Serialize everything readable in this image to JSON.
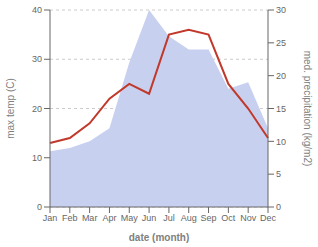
{
  "chart_data": {
    "type": "line",
    "categories": [
      "Jan",
      "Feb",
      "Mar",
      "Apr",
      "May",
      "Jun",
      "Jul",
      "Aug",
      "Sep",
      "Oct",
      "Nov",
      "Dec"
    ],
    "series": [
      {
        "type": "area",
        "axis": "y2",
        "color": "#c8d0f0",
        "values": [
          8.5,
          9,
          10,
          12,
          22,
          30,
          26,
          24,
          24,
          18,
          19,
          12
        ]
      },
      {
        "type": "line",
        "color": "#c0392b",
        "values": [
          13,
          14,
          17,
          22,
          25,
          23,
          35,
          36,
          35,
          25,
          20,
          14
        ]
      }
    ],
    "xlabel": "date (month)",
    "ylabel": "max temp (C)",
    "y2label": "med. precipitation (kg/m2)",
    "ylim": [
      0,
      40
    ],
    "yticks": [
      0,
      10,
      20,
      30,
      40
    ],
    "y2lim": [
      0,
      30
    ],
    "y2ticks": [
      0,
      5,
      10,
      15,
      20,
      25,
      30
    ],
    "grid": true
  }
}
